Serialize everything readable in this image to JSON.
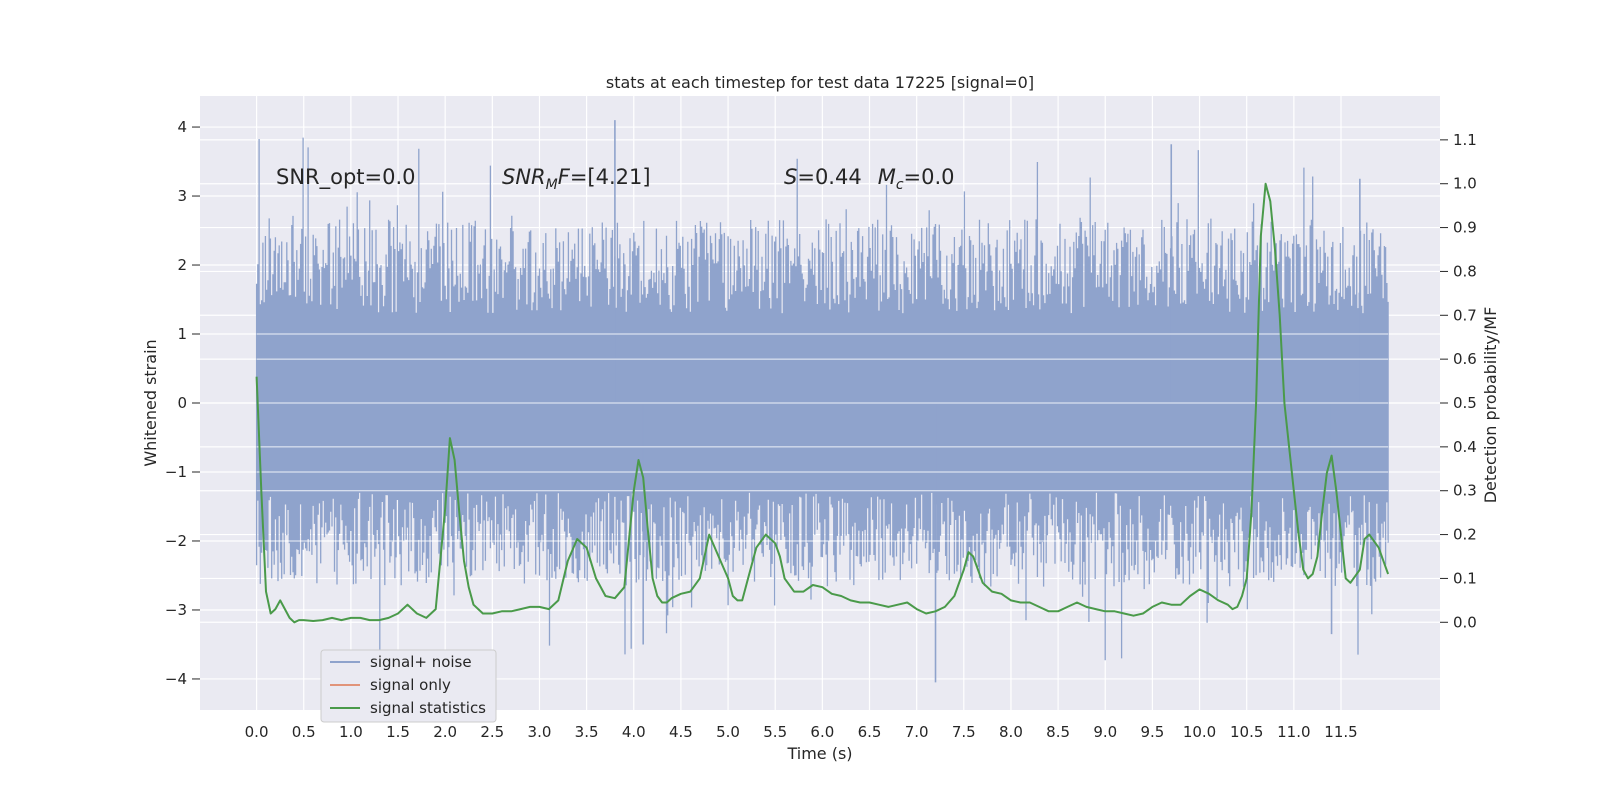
{
  "chart_data": {
    "type": "line",
    "title": "stats at each timestep for test data 17225 [signal=0]",
    "xlabel": "Time (s)",
    "ylabel_left": "Whitened strain",
    "ylabel_right": "Detection probability/MF",
    "xlim": [
      -0.6,
      12.55
    ],
    "ylim_left": [
      -4.45,
      4.45
    ],
    "ylim_right": [
      -0.2,
      1.2
    ],
    "x_ticks": [
      0.0,
      0.5,
      1.0,
      1.5,
      2.0,
      2.5,
      3.0,
      3.5,
      4.0,
      4.5,
      5.0,
      5.5,
      6.0,
      6.5,
      7.0,
      7.5,
      8.0,
      8.5,
      9.0,
      9.5,
      10.0,
      10.5,
      11.0,
      11.5
    ],
    "x_tick_labels": [
      "0.0",
      "0.5",
      "1.0",
      "1.5",
      "2.0",
      "2.5",
      "3.0",
      "3.5",
      "4.0",
      "4.5",
      "5.0",
      "5.5",
      "6.0",
      "6.5",
      "7.0",
      "7.5",
      "8.0",
      "8.5",
      "9.0",
      "9.5",
      "10.0",
      "10.5",
      "11.0",
      "11.5"
    ],
    "y_left_ticks": [
      4,
      3,
      2,
      1,
      0,
      -1,
      -2,
      -3,
      -4
    ],
    "y_left_tick_labels": [
      "4",
      "3",
      "2",
      "1",
      "0",
      "−1",
      "−2",
      "−3",
      "−4"
    ],
    "y_right_ticks": [
      1.1,
      1.0,
      0.9,
      0.8,
      0.7,
      0.6,
      0.5,
      0.4,
      0.3,
      0.2,
      0.1,
      0.0
    ],
    "y_right_tick_labels": [
      "1.1",
      "1.0",
      "0.9",
      "0.8",
      "0.7",
      "0.6",
      "0.5",
      "0.4",
      "0.3",
      "0.2",
      "0.1",
      "0.0"
    ],
    "grid": true,
    "legend_position": "lower-left",
    "annotations": [
      {
        "id": "snr_opt",
        "text": "SNR_opt=0.0",
        "x": 0.2,
        "y": 3.3
      },
      {
        "id": "snr_mf",
        "text": "SNR_MF=[4.21]",
        "x": 2.6,
        "y": 3.3
      },
      {
        "id": "s_mc",
        "text": "S=0.44   M_c=0.0",
        "x": 5.6,
        "y": 3.3
      }
    ],
    "series": [
      {
        "name": "signal+ noise",
        "axis": "left",
        "color": "#8fa3cc",
        "kind": "noise-band",
        "x_range": [
          0.0,
          12.0
        ],
        "band_core": [
          -1.3,
          1.3
        ],
        "band_typical": [
          -2.6,
          2.6
        ],
        "extreme_max": 4.1,
        "extreme_min": -4.05
      },
      {
        "name": "signal only",
        "axis": "left",
        "color": "#e1947a",
        "x": [],
        "y": []
      },
      {
        "name": "signal statistics",
        "axis": "right",
        "color": "#4a9a4a",
        "x": [
          0.0,
          0.05,
          0.1,
          0.15,
          0.2,
          0.25,
          0.3,
          0.35,
          0.4,
          0.45,
          0.5,
          0.6,
          0.7,
          0.8,
          0.9,
          1.0,
          1.1,
          1.2,
          1.3,
          1.4,
          1.5,
          1.6,
          1.7,
          1.8,
          1.9,
          2.0,
          2.05,
          2.1,
          2.15,
          2.2,
          2.25,
          2.3,
          2.4,
          2.5,
          2.6,
          2.7,
          2.8,
          2.9,
          3.0,
          3.1,
          3.2,
          3.3,
          3.4,
          3.5,
          3.6,
          3.7,
          3.8,
          3.9,
          4.0,
          4.05,
          4.1,
          4.15,
          4.2,
          4.25,
          4.3,
          4.35,
          4.4,
          4.5,
          4.6,
          4.7,
          4.8,
          4.9,
          5.0,
          5.05,
          5.1,
          5.15,
          5.2,
          5.3,
          5.4,
          5.5,
          5.55,
          5.6,
          5.7,
          5.8,
          5.9,
          6.0,
          6.1,
          6.2,
          6.3,
          6.4,
          6.5,
          6.6,
          6.7,
          6.8,
          6.9,
          7.0,
          7.1,
          7.2,
          7.3,
          7.4,
          7.5,
          7.55,
          7.6,
          7.7,
          7.8,
          7.9,
          8.0,
          8.1,
          8.2,
          8.3,
          8.4,
          8.5,
          8.6,
          8.7,
          8.8,
          8.9,
          9.0,
          9.1,
          9.2,
          9.3,
          9.4,
          9.5,
          9.6,
          9.7,
          9.8,
          9.9,
          10.0,
          10.1,
          10.2,
          10.3,
          10.35,
          10.4,
          10.45,
          10.5,
          10.55,
          10.6,
          10.65,
          10.7,
          10.75,
          10.8,
          10.85,
          10.9,
          11.0,
          11.05,
          11.1,
          11.15,
          11.2,
          11.25,
          11.3,
          11.35,
          11.4,
          11.45,
          11.5,
          11.55,
          11.6,
          11.7,
          11.75,
          11.8,
          11.9,
          11.95,
          12.0
        ],
        "y": [
          0.56,
          0.3,
          0.07,
          0.02,
          0.03,
          0.05,
          0.03,
          0.01,
          0.0,
          0.005,
          0.005,
          0.003,
          0.005,
          0.01,
          0.005,
          0.01,
          0.01,
          0.005,
          0.005,
          0.01,
          0.02,
          0.04,
          0.02,
          0.01,
          0.03,
          0.26,
          0.42,
          0.37,
          0.25,
          0.14,
          0.08,
          0.04,
          0.02,
          0.02,
          0.025,
          0.025,
          0.03,
          0.035,
          0.035,
          0.03,
          0.05,
          0.14,
          0.19,
          0.17,
          0.1,
          0.06,
          0.055,
          0.08,
          0.3,
          0.37,
          0.33,
          0.21,
          0.1,
          0.06,
          0.045,
          0.045,
          0.055,
          0.065,
          0.07,
          0.1,
          0.2,
          0.15,
          0.1,
          0.06,
          0.05,
          0.05,
          0.09,
          0.17,
          0.2,
          0.18,
          0.15,
          0.1,
          0.07,
          0.07,
          0.085,
          0.08,
          0.065,
          0.06,
          0.05,
          0.045,
          0.045,
          0.04,
          0.035,
          0.04,
          0.045,
          0.03,
          0.02,
          0.025,
          0.035,
          0.06,
          0.12,
          0.16,
          0.15,
          0.09,
          0.07,
          0.065,
          0.05,
          0.045,
          0.045,
          0.035,
          0.025,
          0.025,
          0.035,
          0.045,
          0.035,
          0.03,
          0.025,
          0.025,
          0.02,
          0.015,
          0.02,
          0.035,
          0.045,
          0.04,
          0.04,
          0.06,
          0.075,
          0.065,
          0.05,
          0.04,
          0.03,
          0.035,
          0.06,
          0.1,
          0.25,
          0.5,
          0.88,
          1.0,
          0.96,
          0.85,
          0.7,
          0.5,
          0.3,
          0.2,
          0.12,
          0.1,
          0.11,
          0.15,
          0.25,
          0.34,
          0.38,
          0.3,
          0.2,
          0.1,
          0.09,
          0.12,
          0.19,
          0.2,
          0.17,
          0.14,
          0.11
        ]
      }
    ]
  }
}
